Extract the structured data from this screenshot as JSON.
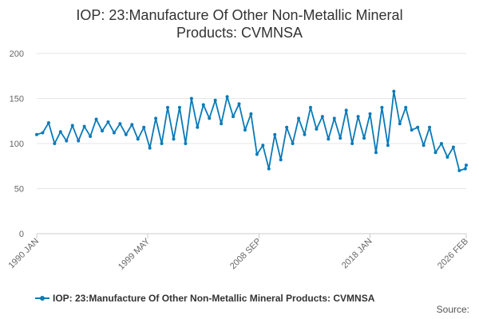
{
  "chart_data": {
    "type": "line",
    "title_line1": "IOP: 23:Manufacture Of Other Non-Metallic Mineral",
    "title_line2": "Products: CVMNSA",
    "ylim": [
      0,
      200
    ],
    "yticks": [
      "0",
      "50",
      "100",
      "150",
      "200"
    ],
    "xticks": [
      {
        "label": "1990 JAN",
        "x": 1990.0
      },
      {
        "label": "1999 MAY",
        "x": 1999.33
      },
      {
        "label": "2008 SEP",
        "x": 2008.67
      },
      {
        "label": "2018 JAN",
        "x": 2018.0
      },
      {
        "label": "2026 FEB",
        "x": 2026.08
      }
    ],
    "xlim": [
      1990.0,
      2026.08
    ],
    "color": "#0a7ab8",
    "series": [
      {
        "name": "IOP: 23:Manufacture Of Other Non-Metallic Mineral Products: CVMNSA",
        "x": [
          1990.0,
          1990.5,
          1991.0,
          1991.5,
          1992.0,
          1992.5,
          1993.0,
          1993.5,
          1994.0,
          1994.5,
          1995.0,
          1995.5,
          1996.0,
          1996.5,
          1997.0,
          1997.5,
          1998.0,
          1998.5,
          1999.0,
          1999.5,
          2000.0,
          2000.5,
          2001.0,
          2001.5,
          2002.0,
          2002.5,
          2003.0,
          2003.5,
          2004.0,
          2004.5,
          2005.0,
          2005.5,
          2006.0,
          2006.5,
          2007.0,
          2007.5,
          2008.0,
          2008.5,
          2009.0,
          2009.5,
          2010.0,
          2010.5,
          2011.0,
          2011.5,
          2012.0,
          2012.5,
          2013.0,
          2013.5,
          2014.0,
          2014.5,
          2015.0,
          2015.5,
          2016.0,
          2016.5,
          2017.0,
          2017.5,
          2018.0,
          2018.5,
          2019.0,
          2019.5,
          2020.0,
          2020.5,
          2021.0,
          2021.5,
          2022.0,
          2022.5,
          2023.0,
          2023.5,
          2024.0,
          2024.5,
          2025.0,
          2025.5,
          2026.0,
          2026.08
        ],
        "values": [
          110,
          112,
          123,
          100,
          113,
          103,
          120,
          103,
          119,
          108,
          127,
          114,
          124,
          112,
          122,
          110,
          121,
          105,
          118,
          95,
          128,
          100,
          140,
          105,
          140,
          100,
          150,
          118,
          143,
          128,
          148,
          122,
          152,
          130,
          144,
          115,
          133,
          88,
          98,
          72,
          110,
          82,
          118,
          100,
          128,
          110,
          140,
          116,
          130,
          105,
          128,
          106,
          137,
          100,
          130,
          106,
          133,
          90,
          140,
          98,
          158,
          122,
          140,
          115,
          118,
          98,
          118,
          90,
          100,
          85,
          96,
          70,
          72,
          76
        ]
      }
    ],
    "legend_label": "IOP: 23:Manufacture Of Other Non-Metallic Mineral Products: CVMNSA",
    "source_label": "Source:"
  }
}
